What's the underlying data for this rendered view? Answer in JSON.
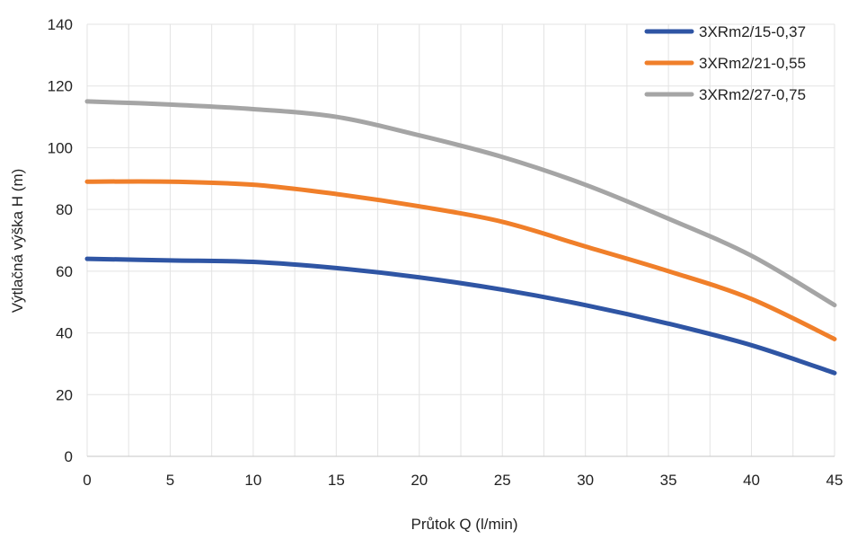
{
  "chart_data": {
    "type": "line",
    "title": "",
    "xlabel": "Průtok Q (l/min)",
    "ylabel": "Výtlačná výška H (m)",
    "xlim": [
      0,
      45
    ],
    "ylim": [
      0,
      140
    ],
    "xticks": [
      0,
      5,
      10,
      15,
      20,
      25,
      30,
      35,
      40,
      45
    ],
    "yticks": [
      0,
      20,
      40,
      60,
      80,
      100,
      120,
      140
    ],
    "grid": true,
    "legend_position": "top-right",
    "series": [
      {
        "name": "3XRm2/15-0,37",
        "color": "#2f55a4",
        "x": [
          0,
          5,
          10,
          15,
          20,
          25,
          30,
          35,
          40,
          45
        ],
        "y": [
          64,
          63.5,
          63,
          61,
          58,
          54,
          49,
          43,
          36,
          27
        ]
      },
      {
        "name": "3XRm2/21-0,55",
        "color": "#f07f2a",
        "x": [
          0,
          5,
          10,
          15,
          20,
          25,
          30,
          35,
          40,
          45
        ],
        "y": [
          89,
          89,
          88,
          85,
          81,
          76,
          68,
          60,
          51,
          38
        ]
      },
      {
        "name": "3XRm2/27-0,75",
        "color": "#a5a5a5",
        "x": [
          0,
          5,
          10,
          15,
          20,
          25,
          30,
          35,
          40,
          45
        ],
        "y": [
          115,
          114,
          112.5,
          110,
          104,
          97,
          88,
          77,
          65,
          49
        ]
      }
    ]
  }
}
